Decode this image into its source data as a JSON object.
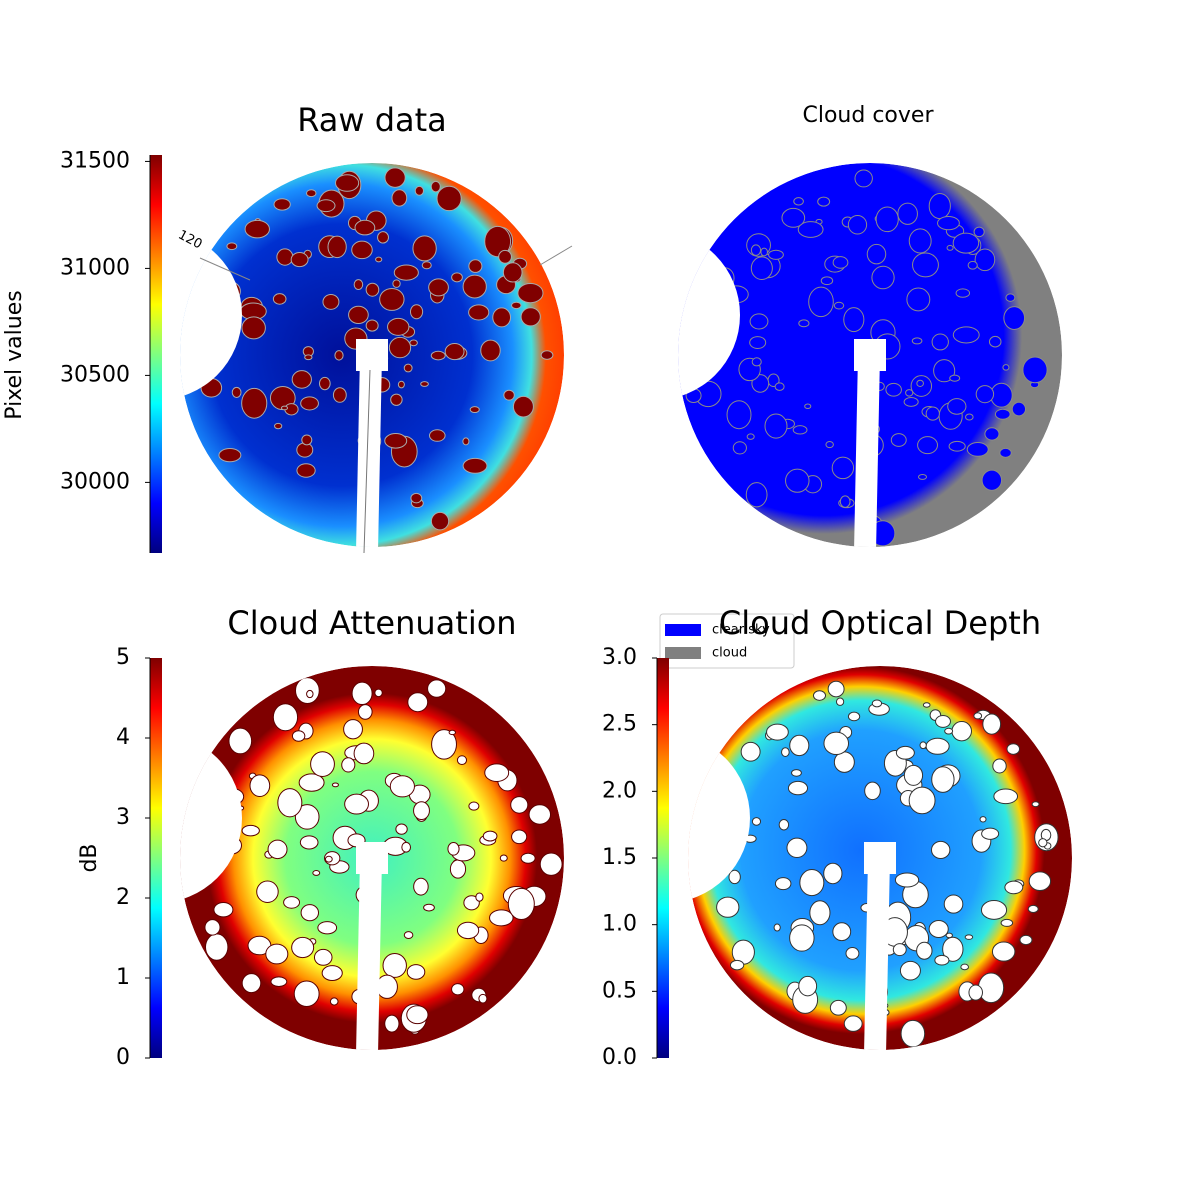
{
  "chart_data": [
    {
      "type": "image",
      "title": "Raw data",
      "clabel": "Pixel values",
      "clim": [
        29670,
        31530
      ],
      "cticks": [
        30000,
        30500,
        31000,
        31500
      ],
      "colormap": "jet",
      "annotation": "120"
    },
    {
      "type": "image",
      "title": "Cloud cover",
      "legend": [
        {
          "name": "clear sky",
          "color": "#0000ff"
        },
        {
          "name": "cloud",
          "color": "#808080"
        }
      ]
    },
    {
      "type": "image",
      "title": "Cloud Attenuation",
      "clabel": "dB",
      "clim": [
        0,
        5
      ],
      "cticks": [
        0,
        1,
        2,
        3,
        4,
        5
      ],
      "colormap": "jet"
    },
    {
      "type": "image",
      "title": "Cloud Optical Depth",
      "clim": [
        0,
        3
      ],
      "cticks": [
        {
          "value": 0,
          "label": "0.0"
        },
        0.5,
        {
          "value": 1,
          "label": "1.0"
        },
        1.5,
        {
          "value": 2,
          "label": "2.0"
        },
        2.5,
        {
          "value": 3,
          "label": "3.0"
        }
      ],
      "colormap": "jet"
    }
  ]
}
